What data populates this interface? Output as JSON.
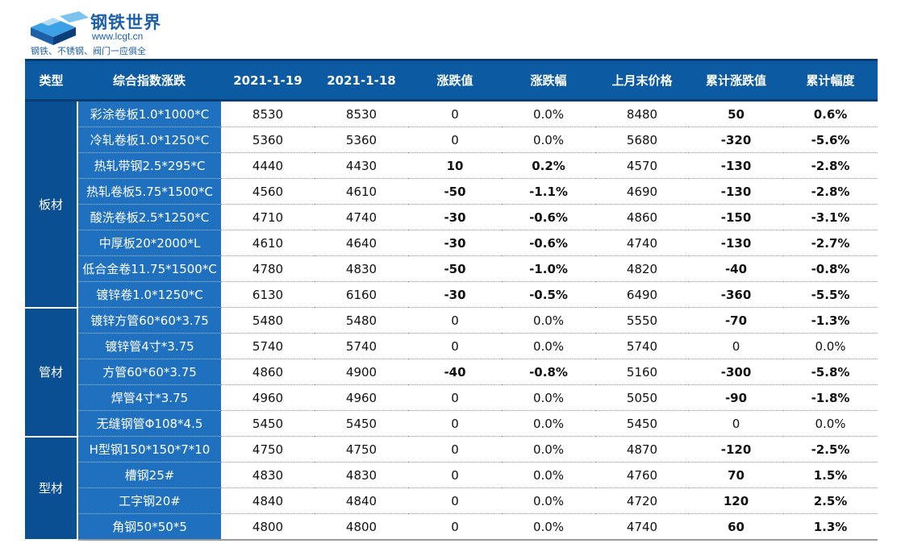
{
  "logo": {
    "brand": "钢铁世界",
    "url": "www.lcgt.cn",
    "slogan": "钢铁、不锈钢、阀门一应俱全",
    "colors": {
      "primary": "#1d5fa8",
      "accent": "#3ba0e6"
    }
  },
  "table": {
    "headers": [
      "类型",
      "综合指数涨跌",
      "2021-1-19",
      "2021-1-18",
      "涨跌值",
      "涨跌幅",
      "上月末价格",
      "累计涨跌值",
      "累计幅度"
    ],
    "colors": {
      "header_bg": "#0b5aa2",
      "category_bg": "#0a4f91",
      "product_bg": "#1f70be",
      "up": "#e3111a",
      "down": "#16a34a"
    },
    "groups": [
      {
        "category": "板材",
        "rows": [
          {
            "name": "彩涂卷板1.0*1000*C",
            "p19": "8530",
            "p18": "8530",
            "chg": "0",
            "pct": "0.0%",
            "last": "8480",
            "cum": "50",
            "cumpct": "0.6%"
          },
          {
            "name": "冷轧卷板1.0*1250*C",
            "p19": "5360",
            "p18": "5360",
            "chg": "0",
            "pct": "0.0%",
            "last": "5680",
            "cum": "-320",
            "cumpct": "-5.6%"
          },
          {
            "name": "热轧带钢2.5*295*C",
            "p19": "4440",
            "p18": "4430",
            "chg": "10",
            "pct": "0.2%",
            "last": "4570",
            "cum": "-130",
            "cumpct": "-2.8%"
          },
          {
            "name": "热轧卷板5.75*1500*C",
            "p19": "4560",
            "p18": "4610",
            "chg": "-50",
            "pct": "-1.1%",
            "last": "4690",
            "cum": "-130",
            "cumpct": "-2.8%"
          },
          {
            "name": "酸洗卷板2.5*1250*C",
            "p19": "4710",
            "p18": "4740",
            "chg": "-30",
            "pct": "-0.6%",
            "last": "4860",
            "cum": "-150",
            "cumpct": "-3.1%"
          },
          {
            "name": "中厚板20*2000*L",
            "p19": "4610",
            "p18": "4640",
            "chg": "-30",
            "pct": "-0.6%",
            "last": "4740",
            "cum": "-130",
            "cumpct": "-2.7%"
          },
          {
            "name": "低合金卷11.75*1500*C",
            "p19": "4780",
            "p18": "4830",
            "chg": "-50",
            "pct": "-1.0%",
            "last": "4820",
            "cum": "-40",
            "cumpct": "-0.8%"
          },
          {
            "name": "镀锌卷1.0*1250*C",
            "p19": "6130",
            "p18": "6160",
            "chg": "-30",
            "pct": "-0.5%",
            "last": "6490",
            "cum": "-360",
            "cumpct": "-5.5%"
          }
        ]
      },
      {
        "category": "管材",
        "rows": [
          {
            "name": "镀锌方管60*60*3.75",
            "p19": "5480",
            "p18": "5480",
            "chg": "0",
            "pct": "0.0%",
            "last": "5550",
            "cum": "-70",
            "cumpct": "-1.3%"
          },
          {
            "name": "镀锌管4寸*3.75",
            "p19": "5740",
            "p18": "5740",
            "chg": "0",
            "pct": "0.0%",
            "last": "5740",
            "cum": "0",
            "cumpct": "0.0%"
          },
          {
            "name": "方管60*60*3.75",
            "p19": "4860",
            "p18": "4900",
            "chg": "-40",
            "pct": "-0.8%",
            "last": "5160",
            "cum": "-300",
            "cumpct": "-5.8%"
          },
          {
            "name": "焊管4寸*3.75",
            "p19": "4960",
            "p18": "4960",
            "chg": "0",
            "pct": "0.0%",
            "last": "5050",
            "cum": "-90",
            "cumpct": "-1.8%"
          },
          {
            "name": "无缝钢管Φ108*4.5",
            "p19": "5450",
            "p18": "5450",
            "chg": "0",
            "pct": "0.0%",
            "last": "5450",
            "cum": "0",
            "cumpct": "0.0%"
          }
        ]
      },
      {
        "category": "型材",
        "rows": [
          {
            "name": "H型钢150*150*7*10",
            "p19": "4750",
            "p18": "4750",
            "chg": "0",
            "pct": "0.0%",
            "last": "4870",
            "cum": "-120",
            "cumpct": "-2.5%"
          },
          {
            "name": "槽钢25#",
            "p19": "4830",
            "p18": "4830",
            "chg": "0",
            "pct": "0.0%",
            "last": "4760",
            "cum": "70",
            "cumpct": "1.5%"
          },
          {
            "name": "工字钢20#",
            "p19": "4840",
            "p18": "4840",
            "chg": "0",
            "pct": "0.0%",
            "last": "4720",
            "cum": "120",
            "cumpct": "2.5%"
          },
          {
            "name": "角钢50*50*5",
            "p19": "4800",
            "p18": "4800",
            "chg": "0",
            "pct": "0.0%",
            "last": "4740",
            "cum": "60",
            "cumpct": "1.3%"
          }
        ]
      }
    ]
  }
}
